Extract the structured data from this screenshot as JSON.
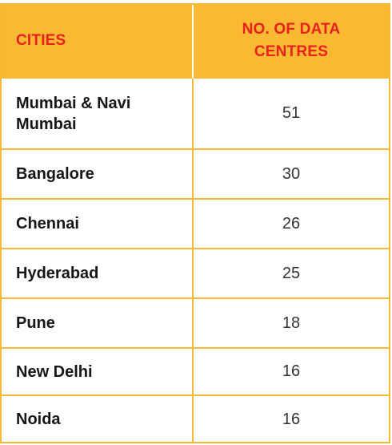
{
  "chart_data": {
    "type": "table",
    "columns": [
      "CITIES",
      "NO. OF DATA CENTRES"
    ],
    "rows": [
      {
        "city": "Mumbai & Navi Mumbai",
        "count": "51"
      },
      {
        "city": "Bangalore",
        "count": "30"
      },
      {
        "city": "Chennai",
        "count": "26"
      },
      {
        "city": "Hyderabad",
        "count": "25"
      },
      {
        "city": "Pune",
        "count": "18"
      },
      {
        "city": "New Delhi",
        "count": "16"
      },
      {
        "city": "Noida",
        "count": "16"
      }
    ]
  },
  "colors": {
    "header_bg": "#f9b932",
    "header_text": "#e8211c",
    "border": "#f7b933"
  }
}
